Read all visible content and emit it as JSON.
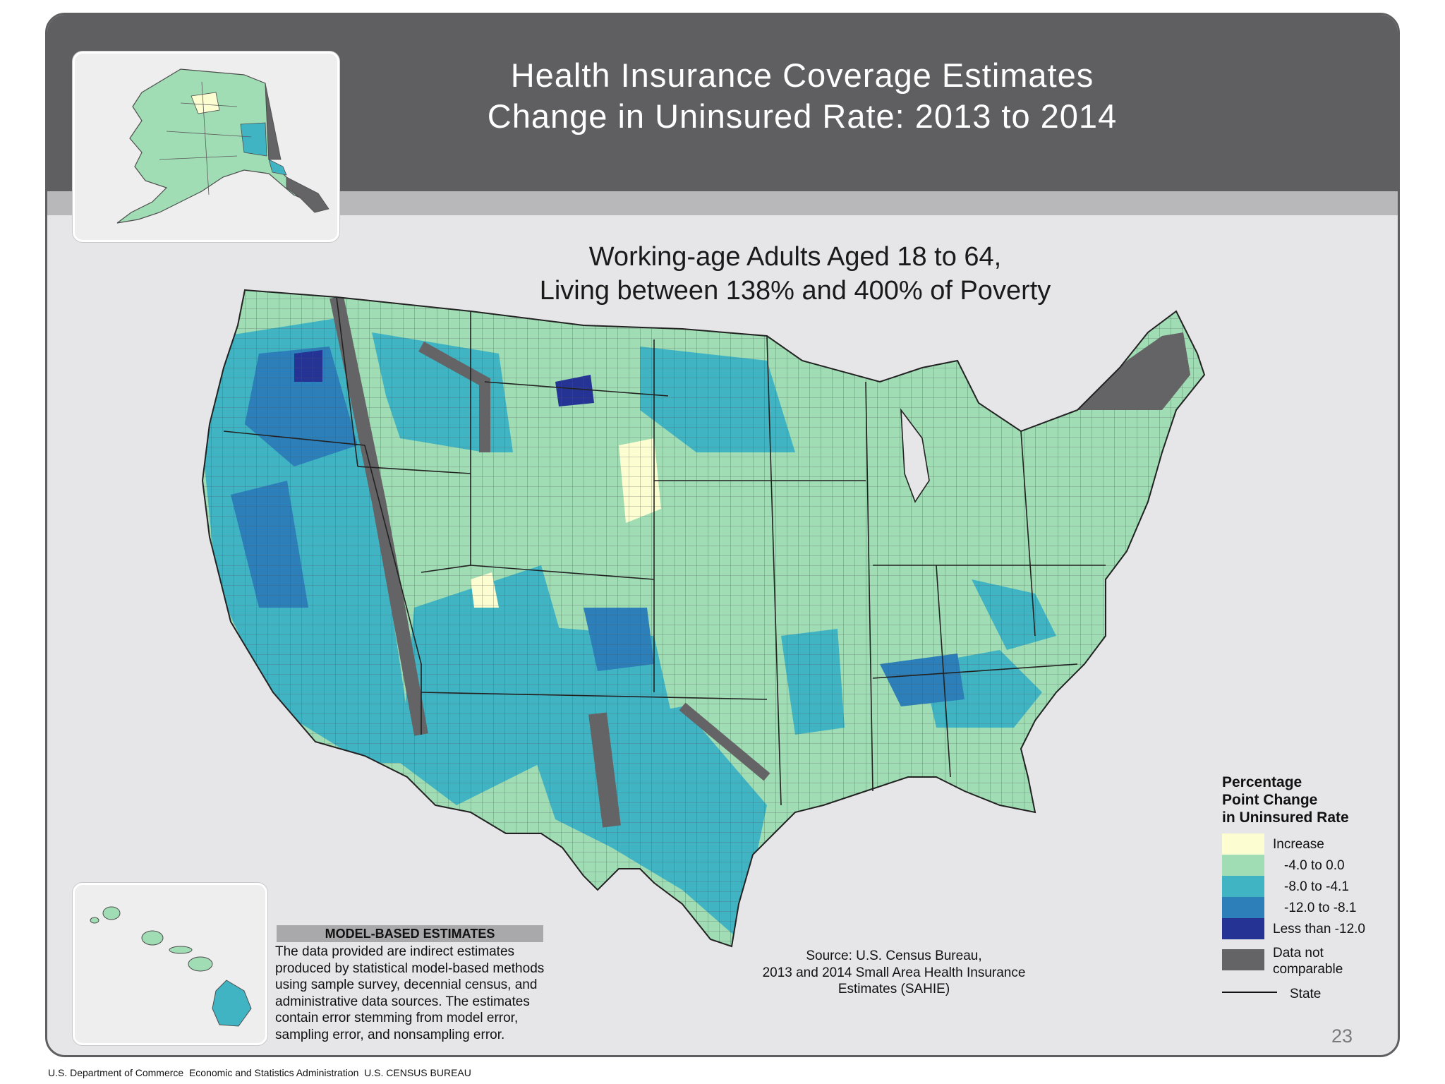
{
  "title": {
    "line1": "Health Insurance Coverage Estimates",
    "line2": "Change in Uninsured Rate: 2013 to 2014"
  },
  "subtitle": {
    "line1": "Working-age Adults Aged 18 to 64,",
    "line2": "Living between 138% and 400% of Poverty"
  },
  "map": {
    "regions": [
      "Contiguous United States",
      "Alaska",
      "Hawaii"
    ],
    "layers": [
      "County",
      "State"
    ]
  },
  "legend": {
    "title": "Percentage\nPoint Change\nin Uninsured Rate",
    "items": [
      {
        "label": "Increase",
        "color": "#fdfdd2"
      },
      {
        "label": "-4.0 to  0.0",
        "color": "#a0dcb4"
      },
      {
        "label": "-8.0 to -4.1",
        "color": "#41b4c4"
      },
      {
        "label": "-12.0 to -8.1",
        "color": "#2c7fb8"
      },
      {
        "label": "Less than -12.0",
        "color": "#253494"
      }
    ],
    "no_data": {
      "label": "Data not\ncomparable",
      "color": "#646466"
    },
    "state_label": "State"
  },
  "model_based": {
    "header": "MODEL-BASED ESTIMATES",
    "text": "The data provided are indirect estimates\nproduced by statistical model-based methods\nusing sample survey, decennial census, and\nadministrative data sources. The estimates\ncontain error stemming from model error,\nsampling error, and nonsampling error."
  },
  "source": {
    "text": "Source: U.S. Census Bureau,\n2013 and 2014 Small Area Health Insurance\nEstimates (SAHIE)"
  },
  "page_number": "23",
  "footer": "U.S. Department of Commerce  Economic and Statistics Administration  U.S. CENSUS BUREAU"
}
